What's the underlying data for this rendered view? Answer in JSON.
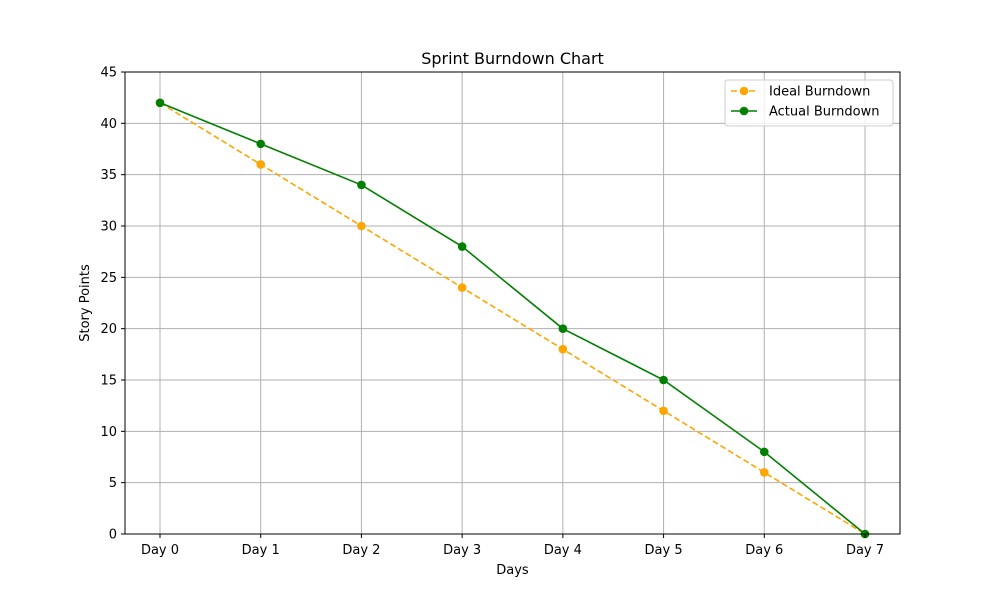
{
  "chart_data": {
    "type": "line",
    "title": "Sprint Burndown Chart",
    "xlabel": "Days",
    "ylabel": "Story Points",
    "categories": [
      "Day 0",
      "Day 1",
      "Day 2",
      "Day 3",
      "Day 4",
      "Day 5",
      "Day 6",
      "Day 7"
    ],
    "ylim": [
      0,
      45
    ],
    "yticks": [
      0,
      5,
      10,
      15,
      20,
      25,
      30,
      35,
      40,
      45
    ],
    "grid": true,
    "legend_position": "top-right",
    "series": [
      {
        "name": "Ideal Burndown",
        "values": [
          42,
          36,
          30,
          24,
          18,
          12,
          6,
          0
        ],
        "color": "#ffa500",
        "line_style": "dashed",
        "marker": "circle"
      },
      {
        "name": "Actual Burndown",
        "values": [
          42,
          38,
          34,
          28,
          20,
          15,
          8,
          0
        ],
        "color": "#008000",
        "line_style": "solid",
        "marker": "circle"
      }
    ]
  }
}
